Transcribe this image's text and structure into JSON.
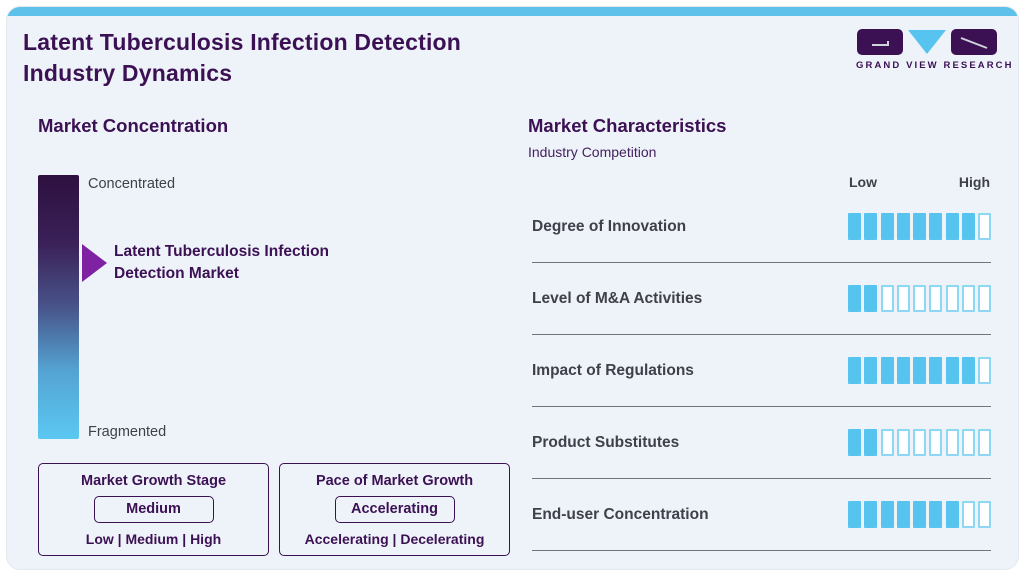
{
  "header": {
    "title_line1": "Latent Tuberculosis Infection Detection",
    "title_line2": "Industry Dynamics",
    "logo_text": "GRAND VIEW RESEARCH"
  },
  "market_concentration": {
    "heading": "Market Concentration",
    "scale_top": "Concentrated",
    "scale_bottom": "Fragmented",
    "marker_label": "Latent Tuberculosis Infection Detection Market",
    "marker_position_pct_from_top": 32,
    "growth_stage": {
      "title": "Market Growth Stage",
      "value": "Medium",
      "options": "Low | Medium | High"
    },
    "growth_pace": {
      "title": "Pace of Market Growth",
      "value": "Accelerating",
      "options": "Accelerating | Decelerating"
    }
  },
  "market_characteristics": {
    "heading": "Market Characteristics",
    "subheading": "Industry Competition",
    "scale_low": "Low",
    "scale_high": "High",
    "total_segments": 9,
    "rows": [
      {
        "label": "Degree of Innovation",
        "filled": 8
      },
      {
        "label": "Level of M&A Activities",
        "filled": 2
      },
      {
        "label": "Impact of Regulations",
        "filled": 8
      },
      {
        "label": "Product Substitutes",
        "filled": 2
      },
      {
        "label": "End-user Concentration",
        "filled": 7
      }
    ]
  },
  "chart_data": {
    "type": "bar",
    "title": "Market Characteristics - Industry Competition",
    "categories": [
      "Degree of Innovation",
      "Level of M&A Activities",
      "Impact of Regulations",
      "Product Substitutes",
      "End-user Concentration"
    ],
    "values": [
      8,
      2,
      8,
      2,
      7
    ],
    "value_max": 9,
    "scale_labels": [
      "Low",
      "High"
    ],
    "legend_position": "none",
    "annotations": [
      "Market Concentration scale: Concentrated to Fragmented, marker at ~32% from Concentrated",
      "Market Growth Stage: Medium",
      "Pace of Market Growth: Accelerating"
    ]
  },
  "colors": {
    "background": "#eef3f9",
    "top_bar": "#5ec1ea",
    "purple": "#3b1154",
    "marker_purple": "#7e22a3",
    "bar_filled": "#56c4ef",
    "bar_empty_border": "#8ed7f4",
    "text_dark": "#3f404a",
    "separator": "#74747a",
    "gradient_top": "#2e1040",
    "gradient_bottom": "#5bc8f2"
  }
}
